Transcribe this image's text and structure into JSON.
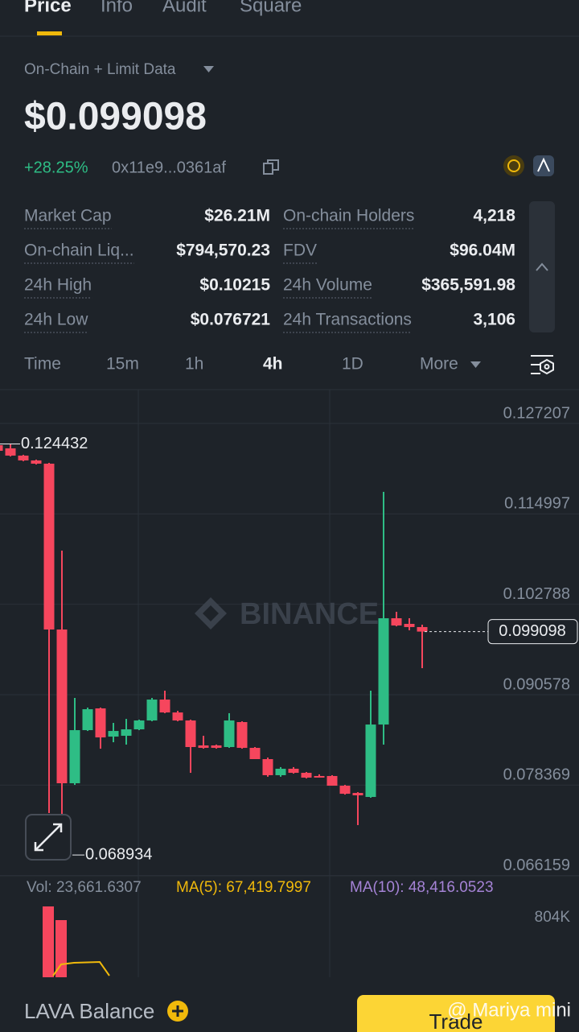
{
  "tabs": [
    "Price",
    "Info",
    "Audit",
    "Square"
  ],
  "source": "On-Chain + Limit Data",
  "price": "$0.099098",
  "change": "+28.25%",
  "address": "0x11e9...0361af",
  "stats": [
    [
      "Market Cap",
      "$26.21M",
      "On-chain Holders",
      "4,218"
    ],
    [
      "On-chain Liq...",
      "$794,570.23",
      "FDV",
      "$96.04M"
    ],
    [
      "24h High",
      "$0.10215",
      "24h Volume",
      "$365,591.98"
    ],
    [
      "24h Low",
      "$0.076721",
      "24h Transactions",
      "3,106"
    ]
  ],
  "timeframes": [
    "Time",
    "15m",
    "1h",
    "4h",
    "1D",
    "More"
  ],
  "chart_data": {
    "type": "candlestick",
    "up_color": "#2ebd85",
    "down_color": "#f6465d",
    "open": [
      0.12427,
      0.12384,
      0.12286,
      0.12221,
      0.12177,
      0.09938,
      0.07862,
      0.08579,
      0.08873,
      0.08492,
      0.08503,
      0.0859,
      0.0871,
      0.08992,
      0.08818,
      0.0871,
      0.08373,
      0.08373,
      0.08351,
      0.08688,
      0.0834,
      0.08188,
      0.07971,
      0.08058,
      0.08003,
      0.0796,
      0.0796,
      0.07829,
      0.07731,
      0.07677,
      0.08655,
      0.1009,
      0.10014,
      0.09971
    ],
    "high": [
      0.1244,
      0.124432,
      0.12297,
      0.12232,
      0.12188,
      0.11003,
      0.09014,
      0.08884,
      0.08884,
      0.08677,
      0.08731,
      0.08721,
      0.09014,
      0.09112,
      0.0884,
      0.08721,
      0.08503,
      0.08384,
      0.08808,
      0.08699,
      0.08351,
      0.08209,
      0.0808,
      0.0808,
      0.08014,
      0.07982,
      0.07971,
      0.0784,
      0.07742,
      0.09112,
      0.11797,
      0.10177,
      0.1009,
      0.10003
    ],
    "low": [
      0.1234,
      0.12275,
      0.1221,
      0.12166,
      0.0746,
      0.068934,
      0.0784,
      0.08568,
      0.08329,
      0.08416,
      0.08384,
      0.08579,
      0.08699,
      0.08808,
      0.08699,
      0.08003,
      0.08329,
      0.08329,
      0.0834,
      0.08329,
      0.08188,
      0.0795,
      0.0795,
      0.07992,
      0.07927,
      0.07938,
      0.07829,
      0.07709,
      0.07297,
      0.07666,
      0.08384,
      0.09981,
      0.09927,
      0.09416
    ],
    "close": [
      0.12351,
      0.12286,
      0.12221,
      0.12177,
      0.09938,
      0.07862,
      0.08579,
      0.08862,
      0.08481,
      0.08568,
      0.0859,
      0.0871,
      0.08992,
      0.08818,
      0.0871,
      0.08351,
      0.0834,
      0.0834,
      0.0871,
      0.0834,
      0.08188,
      0.07971,
      0.08058,
      0.08003,
      0.07938,
      0.07949,
      0.07829,
      0.0772,
      0.07699,
      0.08655,
      0.1009,
      0.09992,
      0.09971,
      0.099098
    ],
    "ylim": [
      0.06612,
      0.13177
    ],
    "yticks": [
      0.127207,
      0.114997,
      0.102788,
      0.090578,
      0.078369,
      0.066159
    ],
    "high_label": 0.124432,
    "low_label": 0.068934,
    "last_price": 0.099098,
    "watermark": "BINANCE"
  },
  "indicators": [
    "Vol: 23,661.6307",
    "MA(5): 67,419.7997",
    "MA(10): 48,416.0523"
  ],
  "volume_tick": {
    "value": 804000,
    "label": "804K"
  },
  "footer": {
    "balance": "LAVA Balance",
    "trade": "Trade",
    "watermark": "@ Mariya mini"
  }
}
